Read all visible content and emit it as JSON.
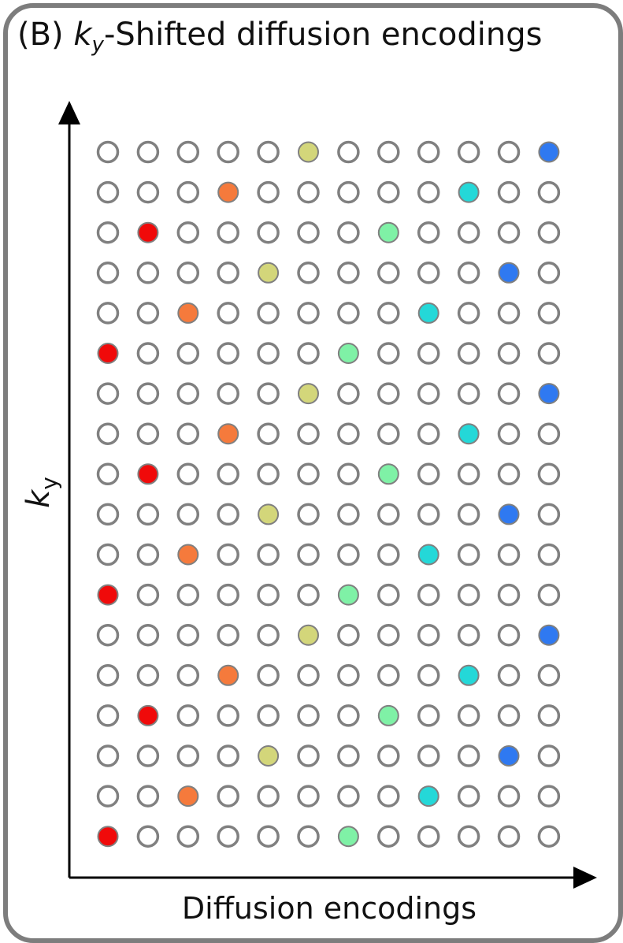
{
  "title": {
    "prefix": "(B) ",
    "var": "k",
    "sub": "y",
    "suffix": "-Shifted diffusion encodings"
  },
  "axes": {
    "xlabel": "Diffusion encodings",
    "ylabel_var": "k",
    "ylabel_sub": "y"
  },
  "colors": {
    "empty_fill": "#ffffff",
    "stroke": "#808080",
    "encodings": [
      "#f00a0a",
      "#f57a3c",
      "#d3d67a",
      "#7ff1a6",
      "#24d8d8",
      "#2f79f1"
    ]
  },
  "grid": {
    "columns": 12,
    "rows": 18,
    "filled_cells": [
      {
        "row": 0,
        "col": 5,
        "encoding": 2
      },
      {
        "row": 0,
        "col": 11,
        "encoding": 5
      },
      {
        "row": 1,
        "col": 3,
        "encoding": 1
      },
      {
        "row": 1,
        "col": 9,
        "encoding": 4
      },
      {
        "row": 2,
        "col": 1,
        "encoding": 0
      },
      {
        "row": 2,
        "col": 7,
        "encoding": 3
      },
      {
        "row": 3,
        "col": 4,
        "encoding": 2
      },
      {
        "row": 3,
        "col": 10,
        "encoding": 5
      },
      {
        "row": 4,
        "col": 2,
        "encoding": 1
      },
      {
        "row": 4,
        "col": 8,
        "encoding": 4
      },
      {
        "row": 5,
        "col": 0,
        "encoding": 0
      },
      {
        "row": 5,
        "col": 6,
        "encoding": 3
      },
      {
        "row": 6,
        "col": 5,
        "encoding": 2
      },
      {
        "row": 6,
        "col": 11,
        "encoding": 5
      },
      {
        "row": 7,
        "col": 3,
        "encoding": 1
      },
      {
        "row": 7,
        "col": 9,
        "encoding": 4
      },
      {
        "row": 8,
        "col": 1,
        "encoding": 0
      },
      {
        "row": 8,
        "col": 7,
        "encoding": 3
      },
      {
        "row": 9,
        "col": 4,
        "encoding": 2
      },
      {
        "row": 9,
        "col": 10,
        "encoding": 5
      },
      {
        "row": 10,
        "col": 2,
        "encoding": 1
      },
      {
        "row": 10,
        "col": 8,
        "encoding": 4
      },
      {
        "row": 11,
        "col": 0,
        "encoding": 0
      },
      {
        "row": 11,
        "col": 6,
        "encoding": 3
      },
      {
        "row": 12,
        "col": 5,
        "encoding": 2
      },
      {
        "row": 12,
        "col": 11,
        "encoding": 5
      },
      {
        "row": 13,
        "col": 3,
        "encoding": 1
      },
      {
        "row": 13,
        "col": 9,
        "encoding": 4
      },
      {
        "row": 14,
        "col": 1,
        "encoding": 0
      },
      {
        "row": 14,
        "col": 7,
        "encoding": 3
      },
      {
        "row": 15,
        "col": 4,
        "encoding": 2
      },
      {
        "row": 15,
        "col": 10,
        "encoding": 5
      },
      {
        "row": 16,
        "col": 2,
        "encoding": 1
      },
      {
        "row": 16,
        "col": 8,
        "encoding": 4
      },
      {
        "row": 17,
        "col": 0,
        "encoding": 0
      },
      {
        "row": 17,
        "col": 6,
        "encoding": 3
      }
    ]
  }
}
